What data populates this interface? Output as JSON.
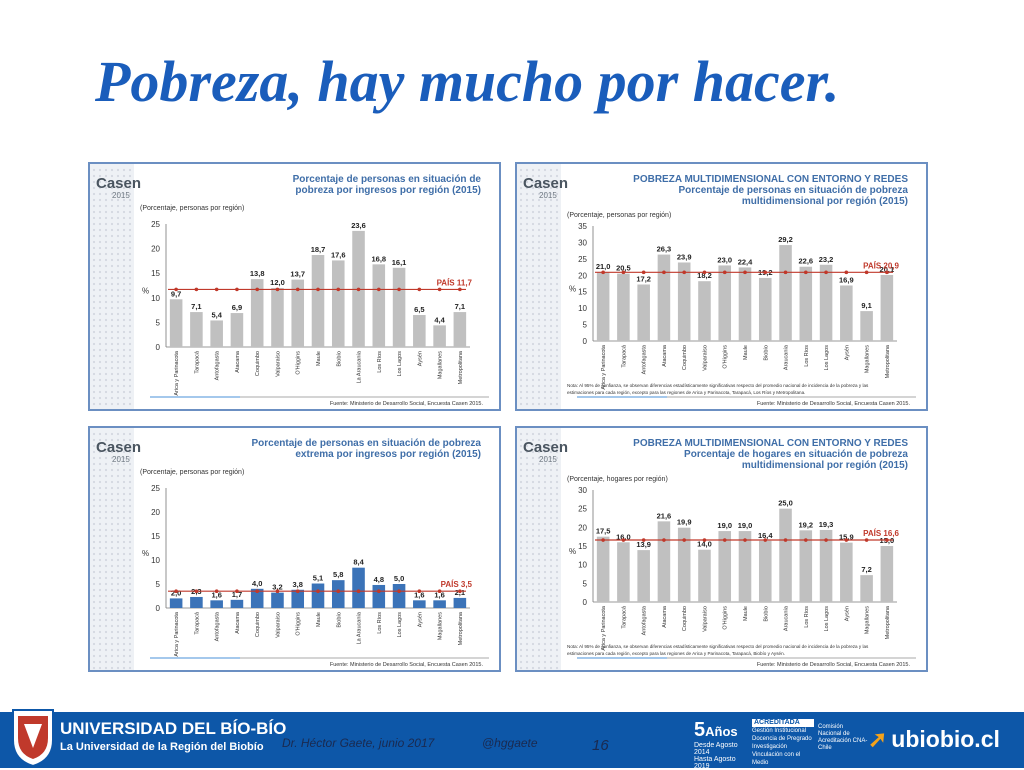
{
  "slide": {
    "title": "Pobreza, hay mucho por hacer."
  },
  "footer": {
    "university_name": "UNIVERSIDAD DEL BÍO-BÍO",
    "university_subtitle": "La Universidad de la Región del Biobío",
    "author": "Dr. Héctor Gaete,  junio 2017",
    "handle": "@hggaete",
    "page_number": "16",
    "anniversary_badge": {
      "big": "5",
      "word": "Años",
      "line1": "Desde Agosto 2014",
      "line2": "Hasta Agosto 2019"
    },
    "accreditation": {
      "header": "ACREDITADA",
      "items": [
        "Gestión Institucional",
        "Docencia de Pregrado",
        "Investigación",
        "Vinculación con el Medio"
      ]
    },
    "cna_text": "Comisión Nacional de Acreditación CNA-Chile",
    "site": "ubiobio.cl"
  },
  "colors": {
    "title": "#1a5dbb",
    "footer_bg": "#0d57a8",
    "bar_gray": "#c0c0c0",
    "bar_blue": "#3b73b8",
    "country_line": "#c0392b",
    "panel_header": "#3f6ea8"
  },
  "chart_data": [
    {
      "type": "bar",
      "logo": "Casen",
      "logo_year": "2015",
      "title_lines": [
        "Porcentaje de personas en situación de",
        "pobreza por ingresos por región (2015)"
      ],
      "unit_label": "(Porcentaje, personas por región)",
      "ylabel": "%",
      "ylim": [
        0,
        25
      ],
      "yticks": [
        0,
        5,
        10,
        15,
        20,
        25
      ],
      "categories": [
        "Arica y Parinacota",
        "Tarapacá",
        "Antofagasta",
        "Atacama",
        "Coquimbo",
        "Valparaíso",
        "O'Higgins",
        "Maule",
        "Biobío",
        "La Araucanía",
        "Los Ríos",
        "Los Lagos",
        "Aysén",
        "Magallanes",
        "Metropolitana"
      ],
      "values": [
        9.7,
        7.1,
        5.4,
        6.9,
        13.8,
        12.0,
        13.7,
        18.7,
        17.6,
        23.6,
        16.8,
        16.1,
        6.5,
        4.4,
        7.1
      ],
      "value_labels": [
        "9,7",
        "7,1",
        "5,4",
        "6,9",
        "13,8",
        "12,0",
        "13,7",
        "18,7",
        "17,6",
        "23,6",
        "16,8",
        "16,1",
        "6,5",
        "4,4",
        "7,1"
      ],
      "country_value": 11.7,
      "country_label": "PAÍS 11,7",
      "bar_color": "#c0c0c0",
      "note": "",
      "source": "Fuente: Ministerio de Desarrollo Social, Encuesta Casen 2015."
    },
    {
      "type": "bar",
      "logo": "Casen",
      "logo_year": "2015",
      "title_lines": [
        "POBREZA MULTIDIMENSIONAL CON ENTORNO Y REDES",
        "Porcentaje de personas en situación de pobreza",
        "multidimensional por región (2015)"
      ],
      "unit_label": "(Porcentaje, personas por región)",
      "ylabel": "%",
      "ylim": [
        0,
        35
      ],
      "yticks": [
        0,
        5,
        10,
        15,
        20,
        25,
        30,
        35
      ],
      "categories": [
        "Arica y Parinacota",
        "Tarapacá",
        "Antofagasta",
        "Atacama",
        "Coquimbo",
        "Valparaíso",
        "O'Higgins",
        "Maule",
        "Biobío",
        "Araucanía",
        "Los Ríos",
        "Los Lagos",
        "Aysén",
        "Magallanes",
        "Metropolitana"
      ],
      "values": [
        21.0,
        20.5,
        17.2,
        26.3,
        23.9,
        18.2,
        23.0,
        22.4,
        19.2,
        29.2,
        22.6,
        23.2,
        16.9,
        9.1,
        20.1
      ],
      "value_labels": [
        "21,0",
        "20,5",
        "17,2",
        "26,3",
        "23,9",
        "18,2",
        "23,0",
        "22,4",
        "19,2",
        "29,2",
        "22,6",
        "23,2",
        "16,9",
        "9,1",
        "20,1"
      ],
      "country_value": 20.9,
      "country_label": "PAÍS 20,9",
      "bar_color": "#c0c0c0",
      "note": "Nota: Al 95% de confianza, se observan diferencias estadísticamente significativas respecto del promedio nacional de incidencia de la pobreza y las estimaciones para cada región, excepto para las regiones de Arica y Parinacota, Tarapacá, Los Ríos y Metropolitana.",
      "source": "Fuente: Ministerio de Desarrollo Social, Encuesta Casen 2015."
    },
    {
      "type": "bar",
      "logo": "Casen",
      "logo_year": "2015",
      "title_lines": [
        "Porcentaje de personas en situación de pobreza",
        "extrema por ingresos por región (2015)"
      ],
      "unit_label": "(Porcentaje, personas por región)",
      "ylabel": "%",
      "ylim": [
        0,
        25
      ],
      "yticks": [
        0,
        5,
        10,
        15,
        20,
        25
      ],
      "categories": [
        "Arica y Parinacota",
        "Tarapacá",
        "Antofagasta",
        "Atacama",
        "Coquimbo",
        "Valparaíso",
        "O'Higgins",
        "Maule",
        "Biobío",
        "La Araucanía",
        "Los Ríos",
        "Los Lagos",
        "Aysén",
        "Magallanes",
        "Metropolitana"
      ],
      "values": [
        2.0,
        2.3,
        1.6,
        1.7,
        4.0,
        3.2,
        3.8,
        5.1,
        5.8,
        8.4,
        4.8,
        5.0,
        1.6,
        1.6,
        2.1
      ],
      "value_labels": [
        "2,0",
        "2,3",
        "1,6",
        "1,7",
        "4,0",
        "3,2",
        "3,8",
        "5,1",
        "5,8",
        "8,4",
        "4,8",
        "5,0",
        "1,6",
        "1,6",
        "2,1"
      ],
      "country_value": 3.5,
      "country_label": "PAÍS 3,5",
      "bar_color": "#3b73b8",
      "note": "",
      "source": "Fuente: Ministerio de Desarrollo Social, Encuesta Casen 2015."
    },
    {
      "type": "bar",
      "logo": "Casen",
      "logo_year": "2015",
      "title_lines": [
        "POBREZA MULTIDIMENSIONAL CON ENTORNO Y REDES",
        "Porcentaje de hogares en situación de pobreza",
        "multidimensional por región (2015)"
      ],
      "unit_label": "(Porcentaje, hogares por región)",
      "ylabel": "%",
      "ylim": [
        0,
        30
      ],
      "yticks": [
        0,
        5,
        10,
        15,
        20,
        25,
        30
      ],
      "categories": [
        "Arica y Parinacota",
        "Tarapacá",
        "Antofagasta",
        "Atacama",
        "Coquimbo",
        "Valparaíso",
        "O'Higgins",
        "Maule",
        "Biobío",
        "Araucanía",
        "Los Ríos",
        "Los Lagos",
        "Aysén",
        "Magallanes",
        "Metropolitana"
      ],
      "values": [
        17.5,
        16.0,
        13.9,
        21.6,
        19.9,
        14.0,
        19.0,
        19.0,
        16.4,
        25.0,
        19.2,
        19.3,
        15.9,
        7.2,
        15.0
      ],
      "value_labels": [
        "17,5",
        "16,0",
        "13,9",
        "21,6",
        "19,9",
        "14,0",
        "19,0",
        "19,0",
        "16,4",
        "25,0",
        "19,2",
        "19,3",
        "15,9",
        "7,2",
        "15,0"
      ],
      "country_value": 16.6,
      "country_label": "PAÍS 16,6",
      "bar_color": "#c0c0c0",
      "note": "Nota: Al 95% de confianza, se observan diferencias estadísticamente significativas respecto del promedio nacional de incidencia de la pobreza y las estimaciones para cada región, excepto para las regiones de Arica y Parinacota, Tarapacá, Biobío y Aysén.",
      "source": "Fuente: Ministerio de Desarrollo Social, Encuesta Casen 2015."
    }
  ]
}
